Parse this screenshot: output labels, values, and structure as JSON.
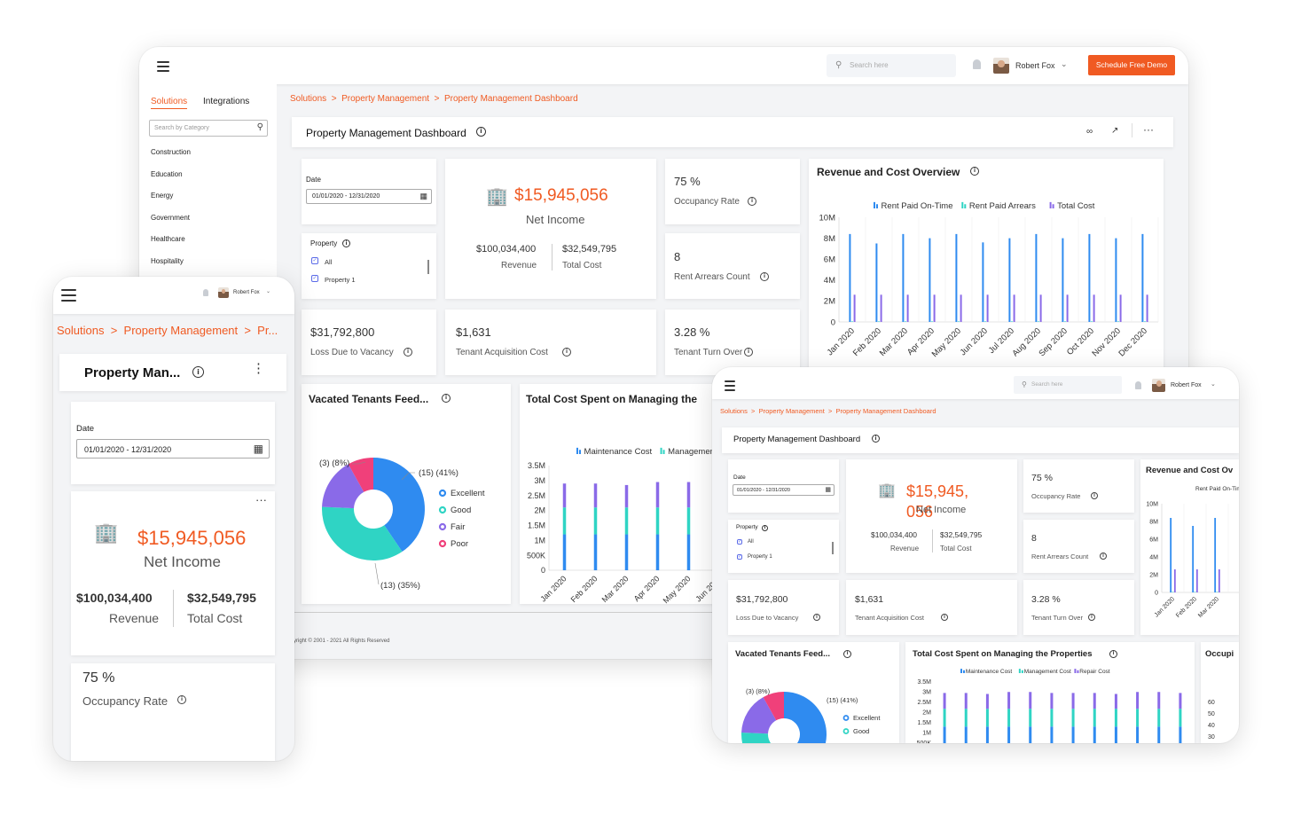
{
  "desktop": {
    "search_placeholder": "Search here",
    "user_name": "Robert Fox",
    "cta_label": "Schedule Free Demo",
    "sidebar": {
      "tabs": [
        "Solutions",
        "Integrations"
      ],
      "search_placeholder": "Search by Category",
      "categories": [
        "Construction",
        "Education",
        "Energy",
        "Government",
        "Healthcare",
        "Hospitality"
      ]
    },
    "breadcrumb": [
      "Solutions",
      "Property Management",
      "Property Management Dashboard"
    ],
    "page_title": "Property Management Dashboard",
    "date_label": "Date",
    "date_value": "01/01/2020 - 12/31/2020",
    "property_label": "Property",
    "property_options": [
      "All",
      "Property 1"
    ],
    "net_income": "$15,945,056",
    "net_income_label": "Net Income",
    "revenue": "$100,034,400",
    "revenue_label": "Revenue",
    "total_cost": "$32,549,795",
    "total_cost_label": "Total Cost",
    "occupancy_rate": "75 %",
    "occupancy_label": "Occupancy Rate",
    "arrears_count": "8",
    "arrears_label": "Rent Arrears Count",
    "vacancy_loss": "$31,792,800",
    "vacancy_label": "Loss Due to Vacancy",
    "acquisition_cost": "$1,631",
    "acquisition_label": "Tenant Acquisition Cost",
    "turnover": "3.28 %",
    "turnover_label": "Tenant Turn Over",
    "revenue_chart_title": "Revenue and Cost Overview",
    "feedback_title": "Vacated Tenants Feed...",
    "cost_chart_title": "Total Cost Spent on Managing the",
    "copyright": "yright © 2001 - 2021 All Rights Reserved"
  },
  "mobile": {
    "user_name": "Robert Fox",
    "breadcrumb": "Solutions  >  Property Management  >  Pr...",
    "page_title": "Property Man...",
    "date_label": "Date",
    "date_value": "01/01/2020 - 12/31/2020",
    "net_income": "$15,945,056",
    "net_income_label": "Net Income",
    "revenue": "$100,034,400",
    "revenue_label": "Revenue",
    "total_cost": "$32,549,795",
    "total_cost_label": "Total Cost",
    "occupancy_rate": "75 %",
    "occupancy_label": "Occupancy Rate"
  },
  "tablet": {
    "search_placeholder": "Search here",
    "user_name": "Robert Fox",
    "breadcrumb": [
      "Solutions",
      "Property Management",
      "Property Management Dashboard"
    ],
    "page_title": "Property Management Dashboard",
    "date_label": "Date",
    "date_value": "01/01/2020 - 12/31/2020",
    "property_label": "Property",
    "property_options": [
      "All",
      "Property 1"
    ],
    "net_income_a": "$15,945,",
    "net_income_b": "056",
    "net_income_label": "Net Income",
    "revenue": "$100,034,400",
    "revenue_label": "Revenue",
    "total_cost": "$32,549,795",
    "total_cost_label": "Total Cost",
    "occupancy_rate": "75 %",
    "occupancy_label": "Occupancy Rate",
    "arrears_count": "8",
    "arrears_label": "Rent Arrears Count",
    "vacancy_loss": "$31,792,800",
    "vacancy_label": "Loss Due to Vacancy",
    "acquisition_cost": "$1,631",
    "acquisition_label": "Tenant Acquisition Cost",
    "turnover": "3.28 %",
    "turnover_label": "Tenant Turn Over",
    "revenue_chart_title": "Revenue and Cost Ov",
    "feedback_title": "Vacated Tenants Feed...",
    "cost_chart_title": "Total Cost Spent on Managing the Properties",
    "occupancy_chart_title": "Occupi"
  },
  "colors": {
    "accent": "#f05a22",
    "blue": "#2f8bf0",
    "teal": "#2fd4c4",
    "purple": "#8a6ae8",
    "pink": "#f0407a"
  },
  "chart_data": [
    {
      "type": "bar",
      "title": "Revenue and Cost Overview",
      "categories": [
        "Jan 2020",
        "Feb 2020",
        "Mar 2020",
        "Apr 2020",
        "May 2020",
        "Jun 2020",
        "Jul 2020",
        "Aug 2020",
        "Sep 2020",
        "Oct 2020",
        "Nov 2020",
        "Dec 2020"
      ],
      "series": [
        {
          "name": "Rent Paid On-Time",
          "values": [
            8.4,
            7.5,
            8.4,
            8.0,
            8.4,
            7.6,
            8.0,
            8.4,
            8.0,
            8.4,
            8.0,
            8.4
          ]
        },
        {
          "name": "Rent Paid Arrears",
          "values": [
            0.05,
            0.05,
            0.05,
            0.05,
            0.05,
            0.05,
            0.05,
            0.05,
            0.05,
            0.05,
            0.05,
            0.05
          ]
        },
        {
          "name": "Total Cost",
          "values": [
            2.6,
            2.6,
            2.6,
            2.6,
            2.6,
            2.6,
            2.6,
            2.6,
            2.6,
            2.6,
            2.6,
            2.6
          ]
        }
      ],
      "ylim": [
        0,
        10
      ],
      "yticks": [
        "0",
        "2M",
        "4M",
        "6M",
        "8M",
        "10M"
      ],
      "legend": "top"
    },
    {
      "type": "pie",
      "title": "Vacated Tenants Feed...",
      "slices": [
        {
          "name": "Excellent",
          "label": "(15) (41%)",
          "value": 15
        },
        {
          "name": "Good",
          "label": "(13) (35%)",
          "value": 13
        },
        {
          "name": "Fair",
          "label": "",
          "value": 6
        },
        {
          "name": "Poor",
          "label": "(3) (8%)",
          "value": 3
        }
      ],
      "legend": "right"
    },
    {
      "type": "bar",
      "title": "Total Cost Spent on Managing the Properties",
      "categories": [
        "Jan 2020",
        "Feb 2020",
        "Mar 2020",
        "Apr 2020",
        "May 2020",
        "Jun 2020"
      ],
      "series": [
        {
          "name": "Maintenance Cost",
          "values": [
            1.2,
            1.2,
            1.2,
            1.2,
            1.2,
            1.2
          ]
        },
        {
          "name": "Management Cost",
          "values": [
            0.9,
            0.9,
            0.9,
            0.9,
            0.9,
            0.9
          ]
        },
        {
          "name": "Repair Cost",
          "values": [
            0.8,
            0.8,
            0.75,
            0.85,
            0.85,
            0.8
          ]
        }
      ],
      "ylim": [
        0,
        3.5
      ],
      "yticks": [
        "0",
        "500K",
        "1M",
        "1.5M",
        "2M",
        "2.5M",
        "3M",
        "3.5M"
      ],
      "legend": "top"
    }
  ]
}
